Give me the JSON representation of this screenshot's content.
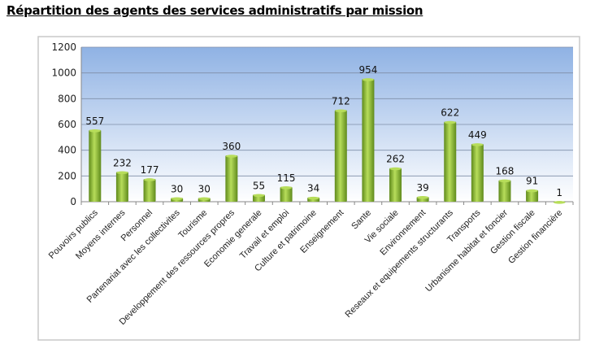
{
  "chart_data": {
    "type": "bar",
    "title": "Répartition des agents des services administratifs par mission",
    "xlabel": "",
    "ylabel": "",
    "ylim": [
      0,
      1200
    ],
    "yticks": [
      0,
      200,
      400,
      600,
      800,
      1000,
      1200
    ],
    "grid": true,
    "legend": "none",
    "categories": [
      "Pouvoirs publics",
      "Moyens internes",
      "Personnel",
      "Partenariat avec les collectivites",
      "Tourisme",
      "Developpement des ressources propres",
      "Economie generale",
      "Travail et emploi",
      "Culture et patrimoine",
      "Enseignement",
      "Sante",
      "Vie sociale",
      "Environnement",
      "Reseaux et equipements structurants",
      "Transports",
      "Urbanisme habitat et foncier",
      "Gestion fiscale",
      "Gestion financière"
    ],
    "values": [
      557,
      232,
      177,
      30,
      30,
      360,
      55,
      115,
      34,
      712,
      954,
      262,
      39,
      622,
      449,
      168,
      91,
      1
    ],
    "colors": {
      "bar_top": "#b7dd5a",
      "bar_bottom": "#5f8a1c",
      "plot_top": "#8fb2e4",
      "plot_bottom": "#ffffff"
    }
  }
}
